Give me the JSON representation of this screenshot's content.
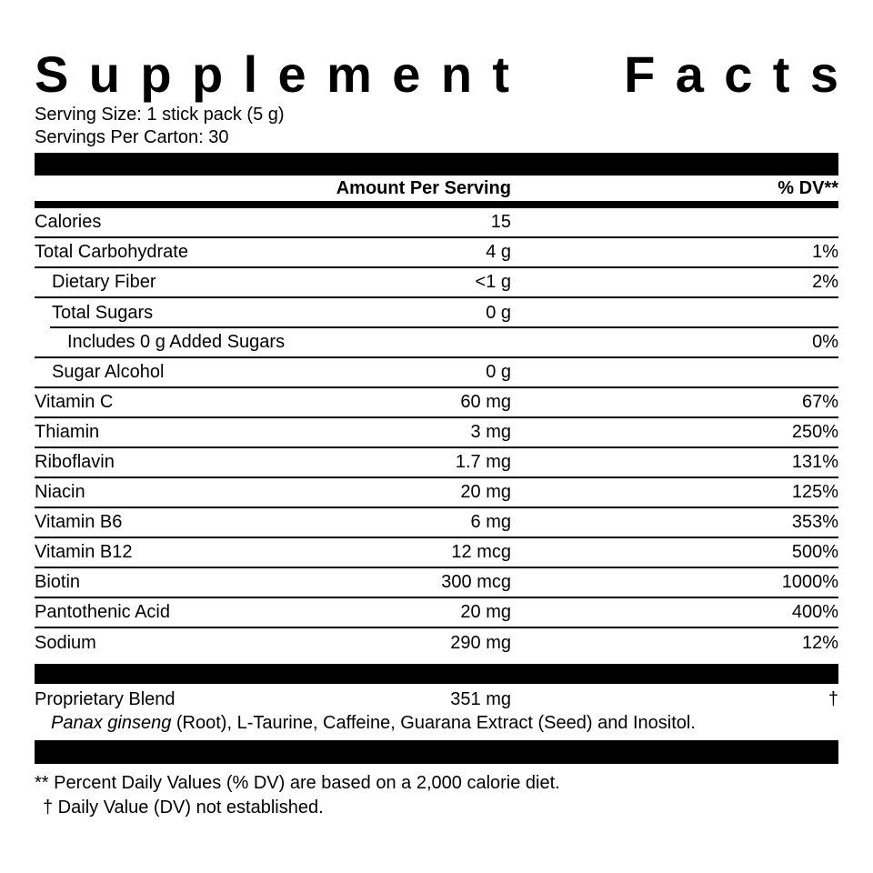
{
  "title": {
    "word1": "Supplement",
    "word2": "Facts"
  },
  "serving": {
    "size_line": "Serving Size: 1 stick pack (5 g)",
    "per_carton_line": "Servings Per Carton: 30"
  },
  "table": {
    "amount_header": "Amount Per Serving",
    "dv_header": "% DV**",
    "rows": [
      {
        "name": "Calories",
        "amount": "15",
        "dv": ""
      },
      {
        "name": "Total Carbohydrate",
        "amount": "4 g",
        "dv": "1%"
      },
      {
        "name": "Dietary Fiber",
        "amount": "<1 g",
        "dv": "2%"
      },
      {
        "name": "Total Sugars",
        "amount": "0 g",
        "dv": ""
      },
      {
        "name": "Includes 0 g Added Sugars",
        "amount": "",
        "dv": "0%"
      },
      {
        "name": "Sugar Alcohol",
        "amount": "0 g",
        "dv": ""
      },
      {
        "name": "Vitamin C",
        "amount": "60 mg",
        "dv": "67%"
      },
      {
        "name": "Thiamin",
        "amount": "3 mg",
        "dv": "250%"
      },
      {
        "name": "Riboflavin",
        "amount": "1.7 mg",
        "dv": "131%"
      },
      {
        "name": "Niacin",
        "amount": "20 mg",
        "dv": "125%"
      },
      {
        "name": "Vitamin B6",
        "amount": "6 mg",
        "dv": "353%"
      },
      {
        "name": "Vitamin B12",
        "amount": "12 mcg",
        "dv": "500%"
      },
      {
        "name": "Biotin",
        "amount": "300 mcg",
        "dv": "1000%"
      },
      {
        "name": "Pantothenic Acid",
        "amount": "20 mg",
        "dv": "400%"
      },
      {
        "name": "Sodium",
        "amount": "290 mg",
        "dv": "12%"
      }
    ]
  },
  "proprietary": {
    "name": "Proprietary Blend",
    "amount": "351 mg",
    "dv_symbol": "†",
    "description_italic": "Panax ginseng",
    "description_rest": " (Root), L-Taurine, Caffeine, Guarana Extract (Seed) and Inositol."
  },
  "footnotes": {
    "percent_dv": "** Percent Daily Values (% DV) are based on a 2,000 calorie diet.",
    "daily_value": "† Daily Value (DV) not established."
  },
  "colors": {
    "text": "#000000",
    "background": "#ffffff",
    "bar": "#000000"
  }
}
